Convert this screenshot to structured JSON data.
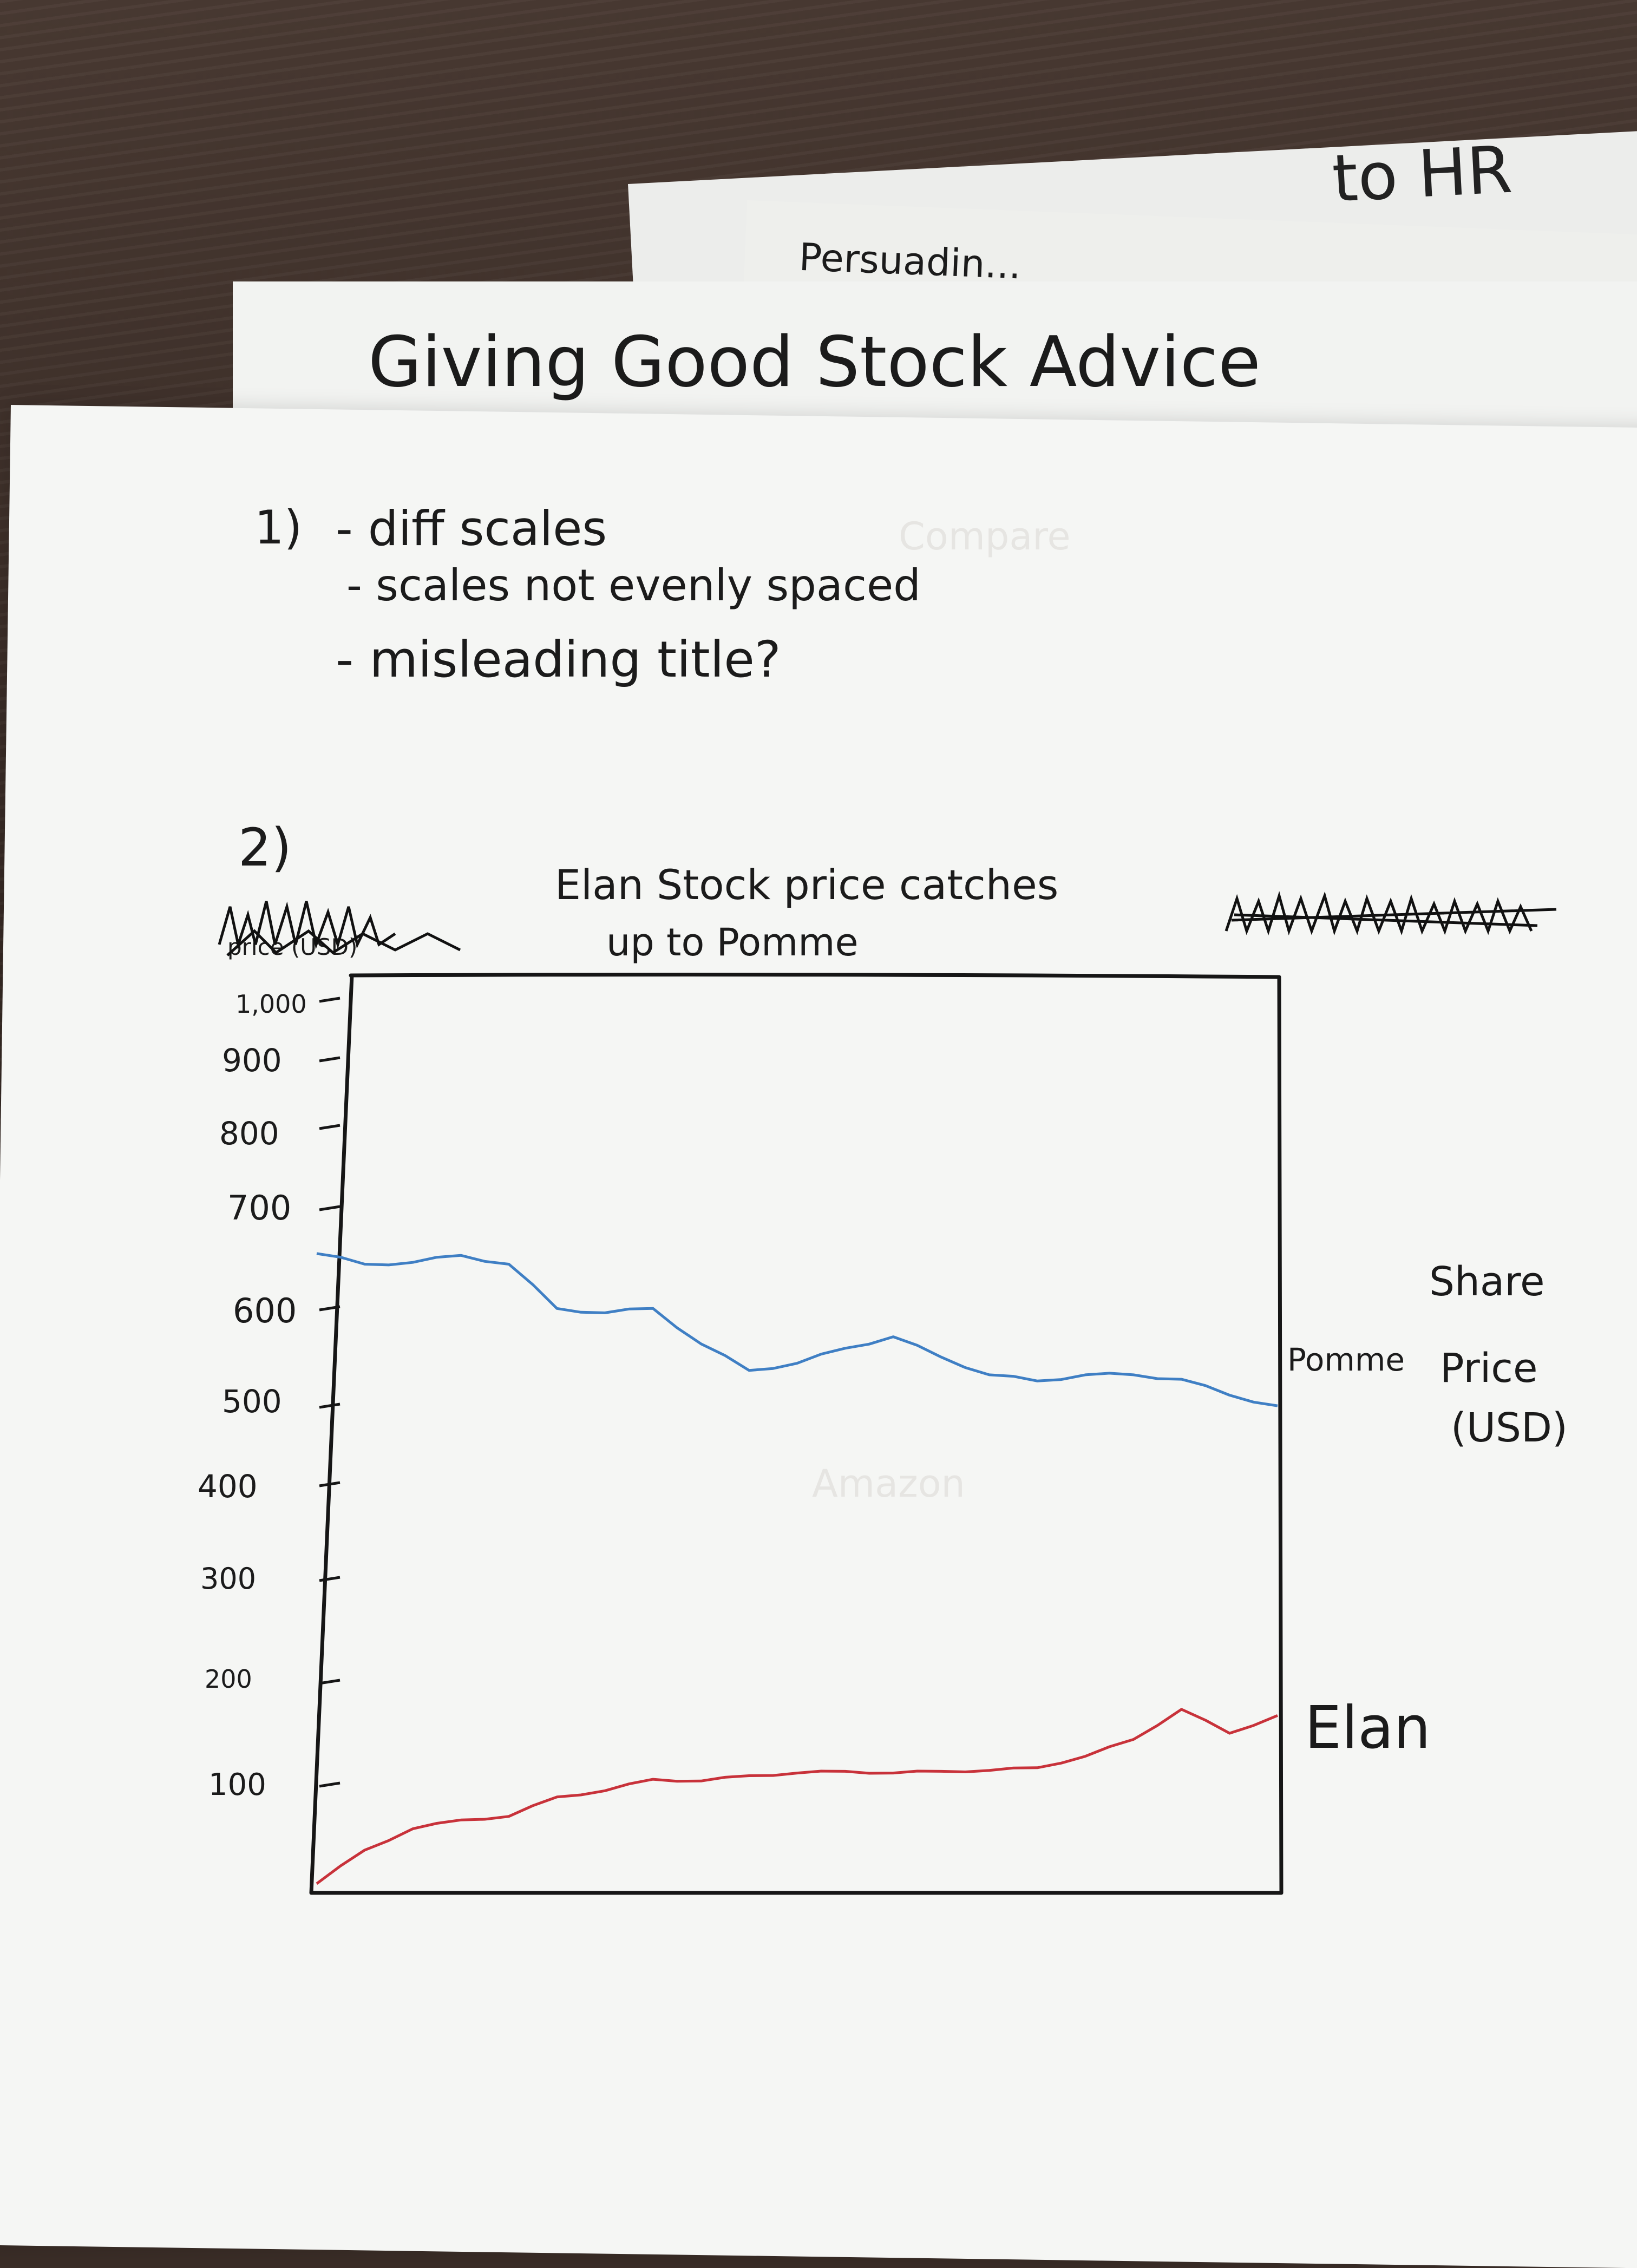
{
  "back_sheets": {
    "sheet1_text": "to HR",
    "sheet2_text": "Persuadin..."
  },
  "notes": {
    "title": "Giving Good Stock Advice",
    "section1_marker": "1)",
    "bullets": [
      "- diff scales",
      "- scales not evenly spaced",
      "- misleading title?"
    ],
    "section2_marker": "2)"
  },
  "chart": {
    "title_line1": "Elan Stock price catches",
    "title_line2": "up to Pomme",
    "left_axis_label": "price (USD)",
    "right_axis_label_lines": [
      "Share",
      "Price",
      "(USD)"
    ],
    "y_ticks": [
      "1,000",
      "900",
      "800",
      "700",
      "600",
      "500",
      "400",
      "300",
      "200",
      "100"
    ],
    "colors": {
      "pomme": "#3f7fc4",
      "elan": "#c8323a",
      "frame": "#161616"
    }
  },
  "chart_data": {
    "type": "line",
    "title": "Elan Stock price catches up to Pomme",
    "ylabel": "Share Price (USD)",
    "yticks": [
      1000,
      900,
      800,
      700,
      600,
      500,
      400,
      300,
      200,
      100
    ],
    "ylim": [
      0,
      1000
    ],
    "x": [
      0,
      1,
      2,
      3,
      4,
      5,
      6,
      7,
      8,
      9,
      10,
      11,
      12,
      13,
      14,
      15,
      16,
      17,
      18,
      19,
      20
    ],
    "series": [
      {
        "name": "Pomme",
        "values": [
          712,
          700,
          702,
          710,
          700,
          650,
          645,
          650,
          610,
          580,
          588,
          605,
          618,
          595,
          575,
          568,
          575,
          575,
          570,
          552,
          540
        ]
      },
      {
        "name": "Elan",
        "values": [
          0,
          38,
          62,
          72,
          76,
          98,
          105,
          118,
          116,
          122,
          125,
          127,
          125,
          127,
          128,
          131,
          144,
          163,
          197,
          170,
          190
        ]
      }
    ]
  }
}
